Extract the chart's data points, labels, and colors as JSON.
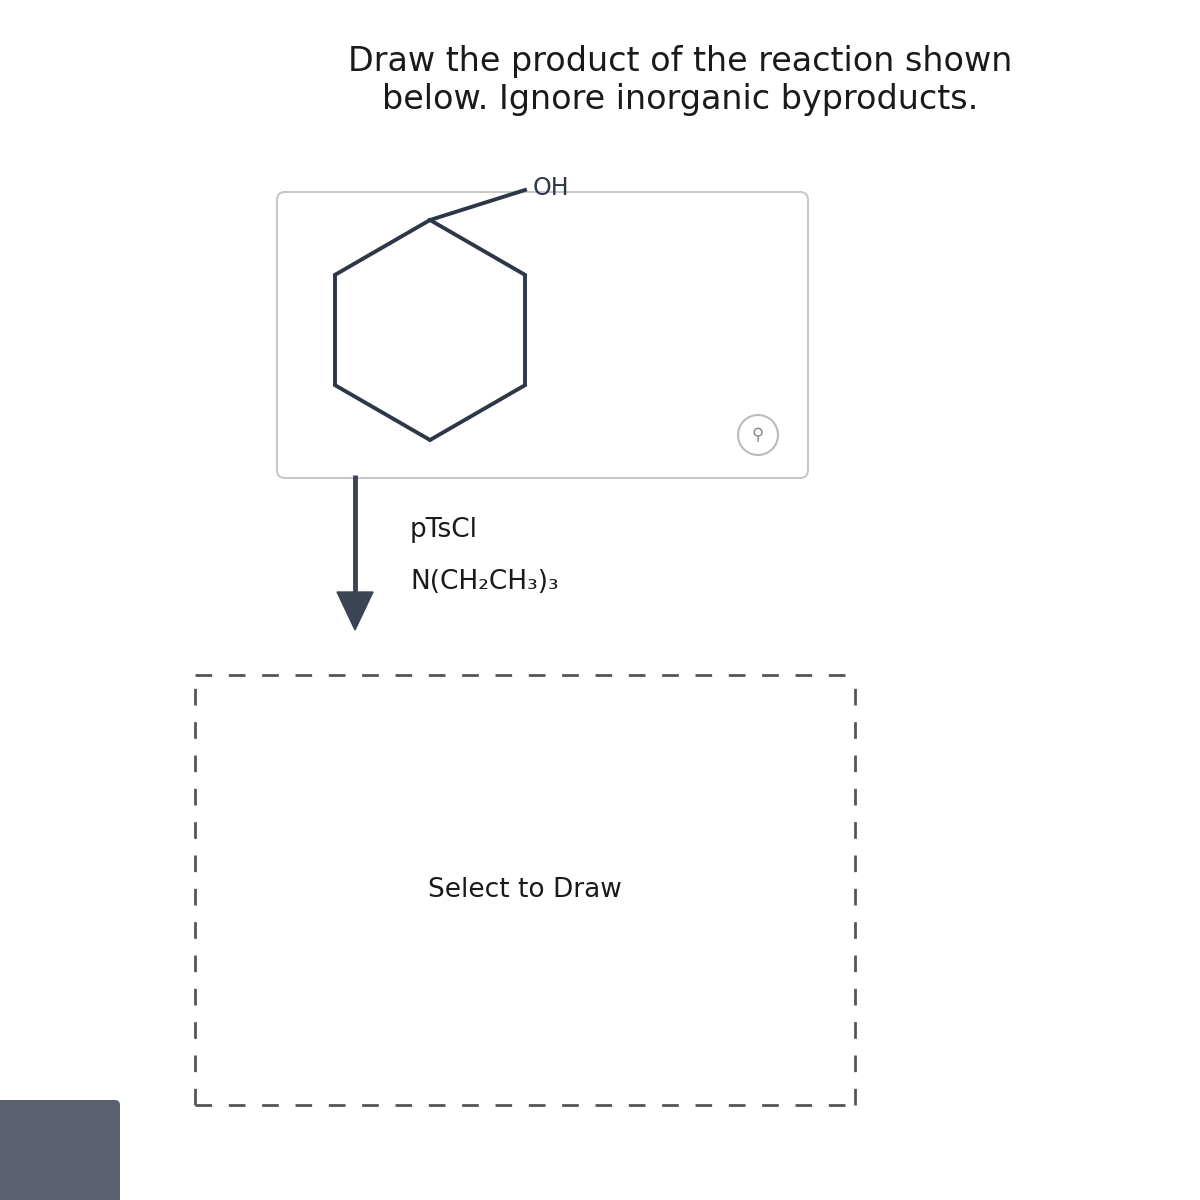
{
  "title_line1": "Draw the product of the reaction shown",
  "title_line2": "below. Ignore inorganic byproducts.",
  "title_fontsize": 24,
  "title_color": "#1a1a1a",
  "background_color": "#ffffff",
  "reagent_box_border": "#c8c8c8",
  "molecule_color": "#2d3748",
  "reagent1": "pTsCl",
  "reagent2": "N(CH₂CH₃)₃",
  "reagent_fontsize": 19,
  "oh_label": "OH",
  "select_to_draw": "Select to Draw",
  "select_fontsize": 19,
  "arrow_color": "#3a4455",
  "dashed_box_color": "#555555"
}
